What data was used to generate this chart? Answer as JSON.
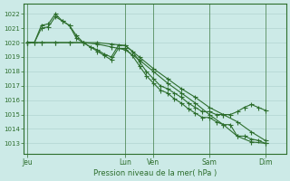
{
  "bg_color": "#cceae7",
  "grid_color": "#aacfcc",
  "line_color": "#2d6e2d",
  "marker_color": "#2d6e2d",
  "ylabel_ticks": [
    1013,
    1014,
    1015,
    1016,
    1017,
    1018,
    1019,
    1020,
    1021,
    1022
  ],
  "ylim": [
    1012.3,
    1022.7
  ],
  "xlabel": "Pression niveau de la mer( hPa )",
  "xtick_labels": [
    "Jeu",
    "Lun",
    "Ven",
    "Sam",
    "Dim"
  ],
  "xtick_positions": [
    0,
    28,
    36,
    52,
    68
  ],
  "xlim": [
    -1,
    74
  ],
  "total_points": 72,
  "series1_x": [
    0,
    2,
    4,
    6,
    8,
    10,
    12,
    14,
    16,
    18,
    20,
    22,
    24,
    26,
    28,
    30,
    32,
    34,
    36,
    38,
    40,
    42,
    44,
    46,
    48,
    50,
    52,
    54,
    56,
    58,
    60,
    62,
    64,
    66,
    68
  ],
  "series1": [
    1020,
    1020,
    1021.2,
    1021.3,
    1022.0,
    1021.5,
    1021.2,
    1020.5,
    1020.0,
    1019.7,
    1019.5,
    1019.2,
    1019.0,
    1019.8,
    1019.8,
    1019.4,
    1018.7,
    1018.0,
    1017.5,
    1017.0,
    1016.8,
    1016.5,
    1016.2,
    1015.8,
    1015.5,
    1015.2,
    1015.2,
    1015.0,
    1015.0,
    1015.0,
    1015.2,
    1015.5,
    1015.7,
    1015.5,
    1015.3
  ],
  "series2_x": [
    0,
    2,
    4,
    6,
    8,
    10,
    12,
    14,
    16,
    18,
    20,
    22,
    24,
    26,
    28,
    30,
    32,
    34,
    36,
    38,
    40,
    42,
    44,
    46,
    48,
    50,
    52,
    54,
    56,
    58,
    60,
    62,
    64,
    66,
    68
  ],
  "series2": [
    1020,
    1020,
    1021.0,
    1021.1,
    1021.8,
    1021.5,
    1021.2,
    1020.3,
    1020.0,
    1019.7,
    1019.4,
    1019.1,
    1018.8,
    1019.6,
    1019.6,
    1019.1,
    1018.4,
    1017.7,
    1017.2,
    1016.7,
    1016.5,
    1016.1,
    1015.8,
    1015.4,
    1015.1,
    1014.8,
    1014.8,
    1014.5,
    1014.3,
    1014.3,
    1013.5,
    1013.5,
    1013.3,
    1013.2,
    1013.0
  ],
  "series3_x": [
    0,
    4,
    8,
    12,
    16,
    20,
    24,
    28,
    32,
    36,
    40,
    44,
    48,
    52,
    56,
    60,
    64,
    68
  ],
  "series3": [
    1020,
    1020,
    1020,
    1020,
    1020,
    1020,
    1019.9,
    1019.8,
    1019.0,
    1018.2,
    1017.5,
    1016.8,
    1016.2,
    1015.5,
    1015.0,
    1014.5,
    1013.8,
    1013.2
  ],
  "series4_x": [
    0,
    4,
    8,
    12,
    16,
    20,
    24,
    28,
    32,
    36,
    40,
    44,
    48,
    52,
    56,
    60,
    64,
    68
  ],
  "series4": [
    1020,
    1020,
    1020,
    1020,
    1020,
    1019.9,
    1019.7,
    1019.5,
    1018.8,
    1018.0,
    1017.2,
    1016.5,
    1015.8,
    1015.0,
    1014.3,
    1013.5,
    1013.1,
    1013.0
  ]
}
